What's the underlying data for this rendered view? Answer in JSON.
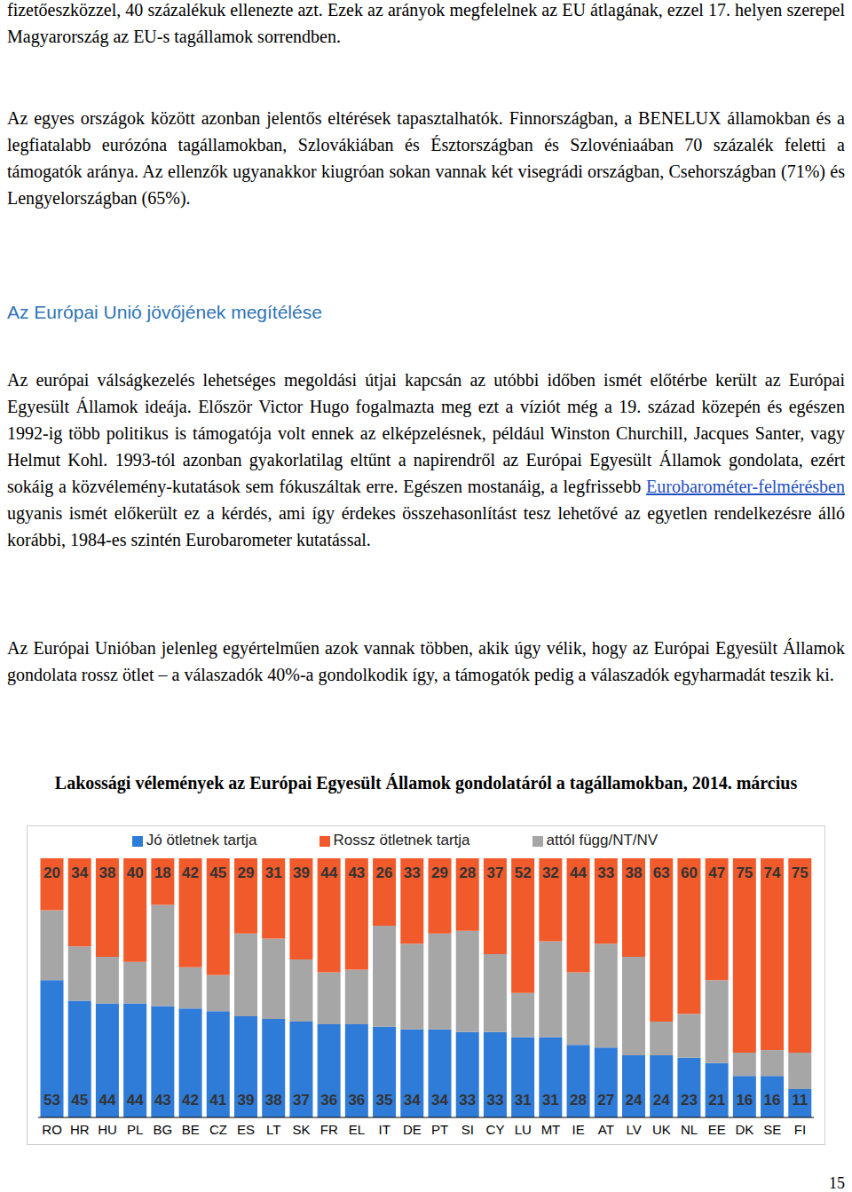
{
  "paragraphs_top": [
    "fizetőeszközzel, 40 százalékuk ellenezte azt. Ezek az arányok megfelelnek az EU átlagának, ezzel 17. helyen szerepel Magyarország az EU-s tagállamok sorrendben.",
    "Az egyes országok között azonban jelentős eltérések tapasztalhatók. Finnországban, a BENELUX államokban és a legfiatalabb eurózóna tagállamokban, Szlovákiában és Észtországban és Szlovéniaában 70 százalék feletti a támogatók aránya. Az ellenzők ugyanakkor kiugróan sokan vannak két visegrádi országban, Csehországban (71%) és Lengyelországban (65%)."
  ],
  "heading": "Az Európai Unió jövőjének megítélése",
  "paragraph_link": {
    "before": "Az európai válságkezelés lehetséges megoldási útjai kapcsán az utóbbi időben ismét előtérbe került az Európai Egyesült Államok ideája. Először Victor Hugo fogalmazta meg ezt a víziót még a 19. század közepén és egészen 1992-ig több politikus is támogatója volt ennek az elképzelésnek, például Winston Churchill, Jacques Santer, vagy Helmut Kohl. 1993-tól azonban gyakorlatilag eltűnt a napirendről az Európai Egyesült Államok gondolata, ezért sokáig a közvélemény-kutatások sem fókuszáltak erre. Egészen mostanáig, a legfrissebb ",
    "link": "Eurobarométer-felmérésben",
    "after": " ugyanis ismét előkerült ez a kérdés, ami így érdekes összehasonlítást tesz lehetővé az egyetlen rendelkezésre álló korábbi, 1984-es szintén Eurobarometer kutatással."
  },
  "paragraph_bottom": "Az Európai Unióban jelenleg egyértelműen azok vannak többen, akik úgy vélik, hogy az Európai Egyesült Államok gondolata rossz ötlet – a válaszadók 40%-a gondolkodik így, a támogatók pedig a válaszadók egyharmadát teszik ki.",
  "chart_data": {
    "type": "bar",
    "title": "Lakossági vélemények az Európai Egyesült Államok gondolatáról a tagállamokban, 2014. március",
    "categories": [
      "RO",
      "HR",
      "HU",
      "PL",
      "BG",
      "BE",
      "CZ",
      "ES",
      "LT",
      "SK",
      "FR",
      "EL",
      "IT",
      "DE",
      "PT",
      "SI",
      "CY",
      "LU",
      "MT",
      "IE",
      "AT",
      "LV",
      "UK",
      "NL",
      "EE",
      "DK",
      "SE",
      "FI"
    ],
    "series": [
      {
        "name": "Jó ötletnek tartja",
        "color": "#2f7bd8",
        "data_labels": true,
        "values": [
          53,
          45,
          44,
          44,
          43,
          42,
          41,
          39,
          38,
          37,
          36,
          36,
          35,
          34,
          34,
          33,
          33,
          31,
          31,
          28,
          27,
          24,
          24,
          23,
          21,
          16,
          16,
          11
        ]
      },
      {
        "name": "attól függ/NT/NV",
        "color": "#a6a6a6",
        "data_labels": false,
        "values": [
          27,
          21,
          18,
          16,
          39,
          16,
          14,
          32,
          31,
          24,
          20,
          21,
          39,
          33,
          37,
          39,
          30,
          17,
          37,
          28,
          40,
          38,
          13,
          17,
          32,
          9,
          10,
          14
        ]
      },
      {
        "name": "Rossz ötletnek tartja",
        "color": "#f15a2b",
        "data_labels": true,
        "values": [
          20,
          34,
          38,
          40,
          18,
          42,
          45,
          29,
          31,
          39,
          44,
          43,
          26,
          33,
          29,
          28,
          37,
          52,
          32,
          44,
          33,
          38,
          63,
          60,
          47,
          75,
          74,
          75
        ]
      }
    ],
    "stacked": true,
    "ylim": [
      0,
      100
    ],
    "tick_labels": "x",
    "legend": "top"
  },
  "page_number": "15"
}
